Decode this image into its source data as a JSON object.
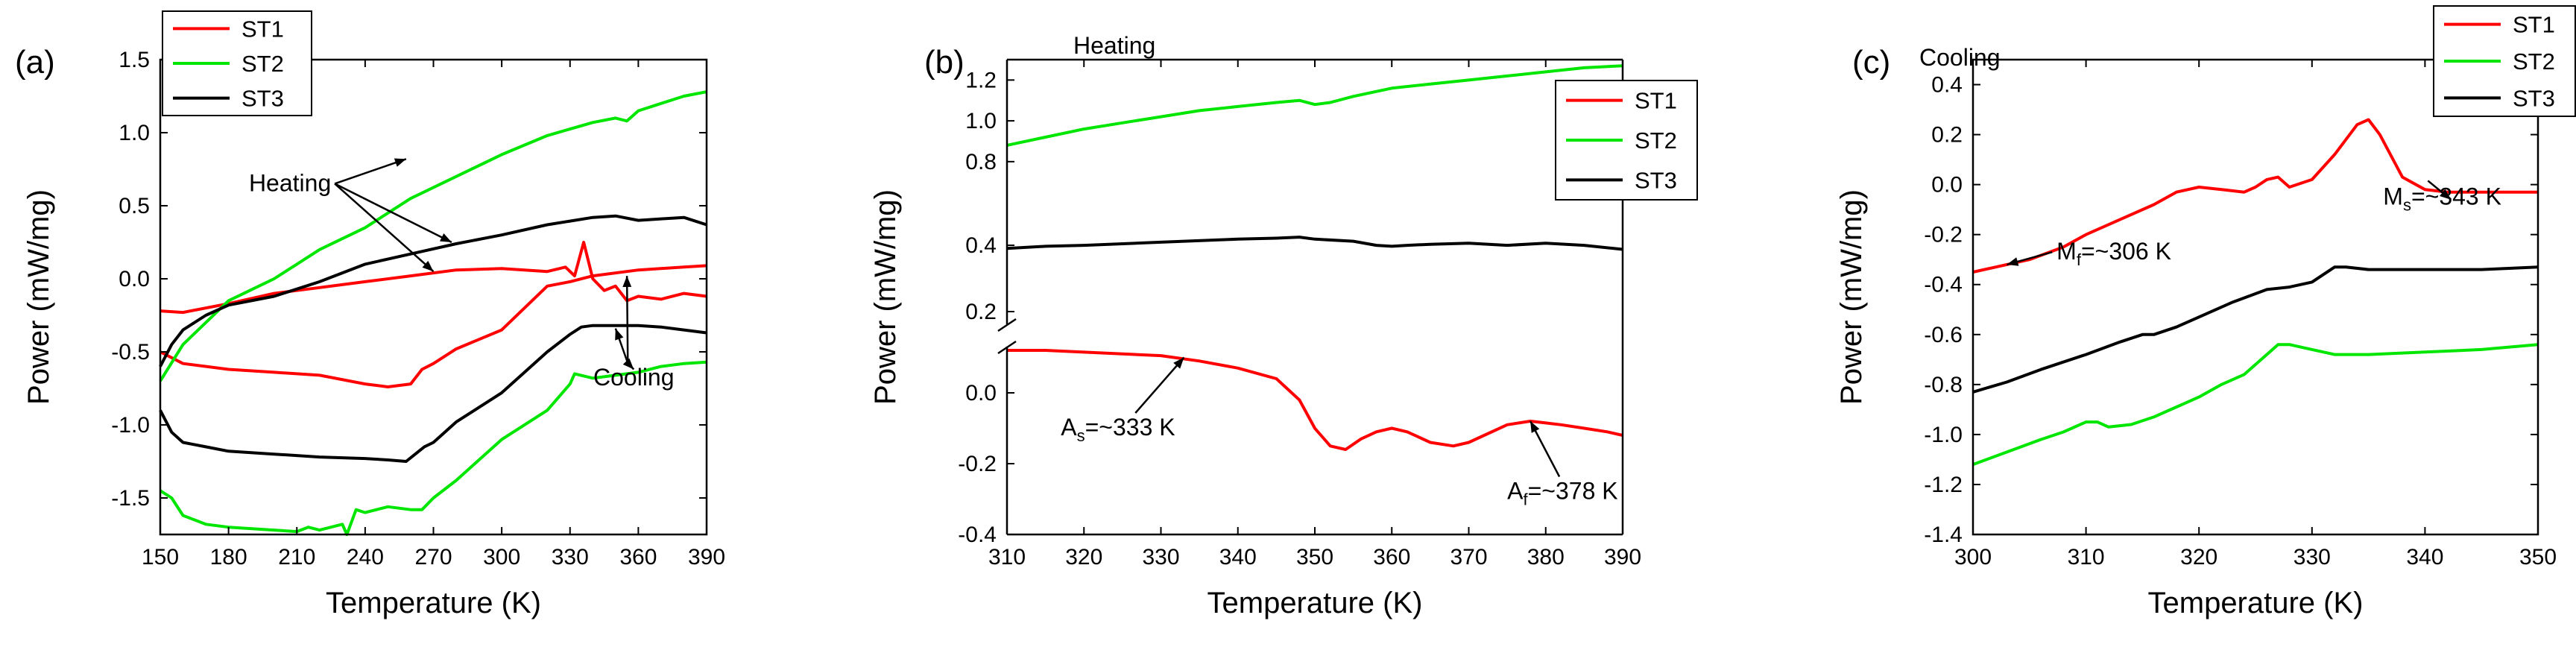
{
  "colors": {
    "ST1": "#ff0000",
    "ST2": "#00e600",
    "ST3": "#000000"
  },
  "chart_data": [
    {
      "id": "a",
      "type": "line",
      "panel_label": "(a)",
      "title": "",
      "xlabel": "Temperature (K)",
      "ylabel": "Power (mW/mg)",
      "xlim": [
        150,
        390
      ],
      "ylim": [
        -1.75,
        1.5
      ],
      "xticks": [
        150,
        180,
        210,
        240,
        270,
        300,
        330,
        360,
        390
      ],
      "yticks": [
        -1.5,
        -1.0,
        -0.5,
        0.0,
        0.5,
        1.0,
        1.5
      ],
      "legend": {
        "placement": "top-left",
        "entries": [
          "ST1",
          "ST2",
          "ST3"
        ]
      },
      "series": [
        {
          "name": "ST1",
          "branch": "heating",
          "x": [
            150,
            160,
            180,
            200,
            220,
            240,
            260,
            280,
            300,
            320,
            328,
            332,
            336,
            340,
            345,
            350,
            355,
            360,
            370,
            380,
            390
          ],
          "y": [
            -0.22,
            -0.23,
            -0.17,
            -0.1,
            -0.06,
            -0.02,
            0.02,
            0.06,
            0.07,
            0.05,
            0.08,
            0.02,
            0.25,
            0.0,
            -0.08,
            -0.05,
            -0.15,
            -0.12,
            -0.14,
            -0.1,
            -0.12
          ]
        },
        {
          "name": "ST1",
          "branch": "cooling",
          "x": [
            150,
            160,
            180,
            200,
            220,
            240,
            250,
            260,
            265,
            270,
            280,
            300,
            320,
            330,
            340,
            360,
            380,
            390
          ],
          "y": [
            -0.5,
            -0.58,
            -0.62,
            -0.64,
            -0.66,
            -0.72,
            -0.74,
            -0.72,
            -0.62,
            -0.58,
            -0.48,
            -0.35,
            -0.05,
            -0.02,
            0.02,
            0.06,
            0.08,
            0.09
          ]
        },
        {
          "name": "ST2",
          "branch": "heating",
          "x": [
            150,
            160,
            180,
            200,
            210,
            220,
            240,
            260,
            280,
            300,
            320,
            340,
            350,
            355,
            360,
            370,
            380,
            390
          ],
          "y": [
            -0.7,
            -0.45,
            -0.15,
            0.0,
            0.1,
            0.2,
            0.35,
            0.55,
            0.7,
            0.85,
            0.98,
            1.07,
            1.1,
            1.08,
            1.15,
            1.2,
            1.25,
            1.28
          ]
        },
        {
          "name": "ST2",
          "branch": "cooling",
          "x": [
            150,
            155,
            160,
            170,
            180,
            200,
            210,
            215,
            220,
            230,
            232,
            236,
            240,
            250,
            260,
            265,
            270,
            280,
            300,
            320,
            330,
            332,
            340,
            350,
            360,
            370,
            380,
            390
          ],
          "y": [
            -1.45,
            -1.5,
            -1.62,
            -1.68,
            -1.7,
            -1.72,
            -1.73,
            -1.7,
            -1.72,
            -1.68,
            -1.75,
            -1.58,
            -1.6,
            -1.56,
            -1.58,
            -1.58,
            -1.5,
            -1.38,
            -1.1,
            -0.9,
            -0.72,
            -0.65,
            -0.68,
            -0.66,
            -0.64,
            -0.6,
            -0.58,
            -0.57
          ]
        },
        {
          "name": "ST3",
          "branch": "heating",
          "x": [
            150,
            155,
            160,
            170,
            180,
            200,
            220,
            240,
            260,
            280,
            300,
            320,
            340,
            350,
            360,
            370,
            380,
            390
          ],
          "y": [
            -0.6,
            -0.45,
            -0.35,
            -0.25,
            -0.18,
            -0.12,
            -0.02,
            0.1,
            0.17,
            0.24,
            0.3,
            0.37,
            0.42,
            0.43,
            0.4,
            0.41,
            0.42,
            0.37
          ]
        },
        {
          "name": "ST3",
          "branch": "cooling",
          "x": [
            150,
            155,
            160,
            170,
            180,
            200,
            220,
            240,
            250,
            258,
            262,
            266,
            270,
            280,
            300,
            320,
            330,
            335,
            340,
            350,
            360,
            370,
            380,
            390
          ],
          "y": [
            -0.9,
            -1.05,
            -1.12,
            -1.15,
            -1.18,
            -1.2,
            -1.22,
            -1.23,
            -1.24,
            -1.25,
            -1.2,
            -1.15,
            -1.12,
            -0.98,
            -0.78,
            -0.5,
            -0.38,
            -0.33,
            -0.32,
            -0.32,
            -0.32,
            -0.33,
            -0.35,
            -0.37
          ]
        }
      ],
      "annotations": [
        {
          "text": "Heating",
          "tx": 207,
          "ty": 0.6,
          "arrows": [
            [
              258,
              0.82
            ],
            [
              270,
              0.05
            ],
            [
              278,
              0.25
            ]
          ]
        },
        {
          "text": "Cooling",
          "tx": 358,
          "ty": -0.73,
          "arrows": [
            [
              355,
              0.02
            ],
            [
              350,
              -0.34
            ],
            [
              358,
              -0.62
            ]
          ]
        }
      ]
    },
    {
      "id": "b",
      "type": "line",
      "panel_label": "(b)",
      "title": "Heating",
      "xlabel": "Temperature (K)",
      "ylabel": "Power (mW/mg)",
      "xlim": [
        310,
        390
      ],
      "broken_axis": true,
      "lower_ylim": [
        -0.4,
        0.12
      ],
      "upper_ylim": [
        0.35,
        1.3
      ],
      "yticks": [
        -0.4,
        -0.2,
        0.0,
        0.2,
        0.4,
        0.8,
        1.0,
        1.2
      ],
      "xticks": [
        310,
        320,
        330,
        340,
        350,
        360,
        370,
        380,
        390
      ],
      "legend": {
        "placement": "top-right",
        "entries": [
          "ST1",
          "ST2",
          "ST3"
        ]
      },
      "series": [
        {
          "name": "ST1",
          "x": [
            310,
            315,
            320,
            325,
            330,
            335,
            340,
            345,
            348,
            350,
            352,
            354,
            356,
            358,
            360,
            362,
            365,
            368,
            370,
            372,
            375,
            378,
            380,
            382,
            385,
            388,
            390
          ],
          "y": [
            0.12,
            0.12,
            0.115,
            0.11,
            0.105,
            0.09,
            0.07,
            0.04,
            -0.02,
            -0.1,
            -0.15,
            -0.16,
            -0.13,
            -0.11,
            -0.1,
            -0.11,
            -0.14,
            -0.15,
            -0.14,
            -0.12,
            -0.09,
            -0.08,
            -0.085,
            -0.09,
            -0.1,
            -0.11,
            -0.12
          ]
        },
        {
          "name": "ST2",
          "x": [
            310,
            315,
            320,
            325,
            330,
            335,
            340,
            345,
            348,
            350,
            352,
            355,
            360,
            365,
            370,
            375,
            380,
            385,
            390
          ],
          "y": [
            0.88,
            0.92,
            0.96,
            0.99,
            1.02,
            1.05,
            1.07,
            1.09,
            1.1,
            1.08,
            1.09,
            1.12,
            1.16,
            1.18,
            1.2,
            1.22,
            1.24,
            1.26,
            1.27
          ]
        },
        {
          "name": "ST3",
          "x": [
            310,
            315,
            320,
            330,
            340,
            345,
            348,
            350,
            355,
            358,
            360,
            362,
            365,
            370,
            375,
            380,
            385,
            390
          ],
          "y": [
            0.375,
            0.385,
            0.39,
            0.405,
            0.42,
            0.425,
            0.43,
            0.42,
            0.41,
            0.39,
            0.385,
            0.39,
            0.395,
            0.4,
            0.39,
            0.4,
            0.39,
            0.37
          ]
        }
      ],
      "annotations": [
        {
          "text": "As=~333 K",
          "main": "A",
          "sub": "s",
          "rest": "=~333 K",
          "tx": 317,
          "ty": -0.12,
          "arrows": [
            [
              333,
              0.1
            ]
          ]
        },
        {
          "text": "Af=~378 K",
          "main": "A",
          "sub": "f",
          "rest": "=~378 K",
          "tx": 375,
          "ty": -0.3,
          "arrows": [
            [
              378,
              -0.08
            ]
          ]
        }
      ]
    },
    {
      "id": "c",
      "type": "line",
      "panel_label": "(c)",
      "title": "Cooling",
      "xlabel": "Temperature (K)",
      "ylabel": "Power (mW/mg)",
      "xlim": [
        300,
        350
      ],
      "ylim": [
        -1.4,
        0.5
      ],
      "xticks": [
        300,
        310,
        320,
        330,
        340,
        350
      ],
      "yticks": [
        -1.4,
        -1.2,
        -1.0,
        -0.8,
        -0.6,
        -0.4,
        -0.2,
        0.0,
        0.2,
        0.4
      ],
      "legend": {
        "placement": "top-right",
        "entries": [
          "ST1",
          "ST2",
          "ST3"
        ]
      },
      "series": [
        {
          "name": "ST1",
          "x": [
            300,
            302,
            305,
            308,
            310,
            313,
            316,
            318,
            320,
            322,
            324,
            325,
            326,
            327,
            328,
            330,
            332,
            334,
            335,
            336,
            338,
            340,
            342,
            345,
            350
          ],
          "y": [
            -0.35,
            -0.33,
            -0.3,
            -0.25,
            -0.2,
            -0.14,
            -0.08,
            -0.03,
            -0.01,
            -0.02,
            -0.03,
            -0.01,
            0.02,
            0.03,
            -0.01,
            0.02,
            0.12,
            0.24,
            0.26,
            0.2,
            0.03,
            -0.02,
            -0.03,
            -0.03,
            -0.03
          ]
        },
        {
          "name": "ST2",
          "x": [
            300,
            303,
            306,
            308,
            310,
            311,
            312,
            314,
            316,
            318,
            320,
            322,
            324,
            326,
            327,
            328,
            330,
            332,
            335,
            340,
            345,
            350
          ],
          "y": [
            -1.12,
            -1.07,
            -1.02,
            -0.99,
            -0.95,
            -0.95,
            -0.97,
            -0.96,
            -0.93,
            -0.89,
            -0.85,
            -0.8,
            -0.76,
            -0.68,
            -0.64,
            -0.64,
            -0.66,
            -0.68,
            -0.68,
            -0.67,
            -0.66,
            -0.64
          ]
        },
        {
          "name": "ST3",
          "x": [
            300,
            303,
            306,
            310,
            313,
            315,
            316,
            318,
            320,
            323,
            326,
            328,
            330,
            331,
            332,
            333,
            335,
            338,
            340,
            345,
            350
          ],
          "y": [
            -0.83,
            -0.79,
            -0.74,
            -0.68,
            -0.63,
            -0.6,
            -0.6,
            -0.57,
            -0.53,
            -0.47,
            -0.42,
            -0.41,
            -0.39,
            -0.36,
            -0.33,
            -0.33,
            -0.34,
            -0.34,
            -0.34,
            -0.34,
            -0.33
          ]
        }
      ],
      "annotations": [
        {
          "text": "Mf=~306 K",
          "main": "M",
          "sub": "f",
          "rest": "=~306 K",
          "tx": 307.4,
          "ty": -0.3,
          "arrows": [
            [
              303,
              -0.32
            ]
          ]
        },
        {
          "text": "Ms=~343 K",
          "main": "M",
          "sub": "s",
          "rest": "=~343 K",
          "tx": 336.3,
          "ty": -0.08,
          "arrows": [
            [
              342.3,
              -0.06
            ]
          ]
        }
      ]
    }
  ]
}
